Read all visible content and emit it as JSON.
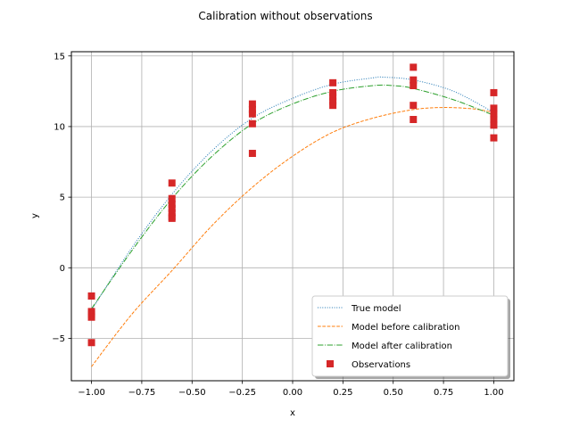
{
  "chart_data": {
    "type": "line",
    "title": "Calibration without observations",
    "xlabel": "x",
    "ylabel": "y",
    "xlim": [
      -1.1,
      1.1
    ],
    "ylim": [
      -8,
      15.3
    ],
    "xticks": [
      -1.0,
      -0.75,
      -0.5,
      -0.25,
      0.0,
      0.25,
      0.5,
      0.75,
      1.0
    ],
    "xtick_labels": [
      "−1.00",
      "−0.75",
      "−0.50",
      "−0.25",
      "0.00",
      "0.25",
      "0.50",
      "0.75",
      "1.00"
    ],
    "yticks": [
      -5,
      0,
      5,
      10,
      15
    ],
    "ytick_labels": [
      "−5",
      "0",
      "5",
      "10",
      "15"
    ],
    "grid": true,
    "legend_position": "lower-right",
    "series": [
      {
        "name": "True model",
        "style": "dotted",
        "color": "#1f77b4",
        "x": [
          -1.0,
          -0.8,
          -0.6,
          -0.4,
          -0.2,
          0.0,
          0.2,
          0.4,
          0.45,
          0.6,
          0.8,
          1.0
        ],
        "y": [
          -3.0,
          1.4,
          5.2,
          8.3,
          10.6,
          12.0,
          13.0,
          13.45,
          13.5,
          13.3,
          12.5,
          11.0
        ]
      },
      {
        "name": "Model before calibration",
        "style": "dashed",
        "color": "#ff7f0e",
        "x": [
          -1.0,
          -0.8,
          -0.6,
          -0.4,
          -0.2,
          0.0,
          0.2,
          0.4,
          0.6,
          0.75,
          0.9,
          1.0
        ],
        "y": [
          -7.0,
          -3.3,
          -0.2,
          3.0,
          5.7,
          7.9,
          9.6,
          10.6,
          11.2,
          11.35,
          11.25,
          11.0
        ]
      },
      {
        "name": "Model after calibration",
        "style": "dashdot",
        "color": "#2ca02c",
        "x": [
          -1.0,
          -0.8,
          -0.6,
          -0.4,
          -0.2,
          0.0,
          0.2,
          0.4,
          0.5,
          0.6,
          0.8,
          1.0
        ],
        "y": [
          -2.9,
          1.2,
          4.9,
          7.9,
          10.2,
          11.6,
          12.5,
          12.9,
          12.9,
          12.7,
          11.9,
          10.8
        ]
      },
      {
        "name": "Observations",
        "style": "markers",
        "color": "#d62728",
        "x": [
          -1.0,
          -1.0,
          -1.0,
          -1.0,
          -1.0,
          -0.6,
          -0.6,
          -0.6,
          -0.6,
          -0.6,
          -0.6,
          -0.6,
          -0.2,
          -0.2,
          -0.2,
          -0.2,
          -0.2,
          0.2,
          0.2,
          0.2,
          0.2,
          0.2,
          0.6,
          0.6,
          0.6,
          0.6,
          0.6,
          1.0,
          1.0,
          1.0,
          1.0,
          1.0,
          1.0
        ],
        "y": [
          -2.0,
          -3.1,
          -3.3,
          -3.5,
          -5.3,
          6.0,
          4.9,
          4.5,
          4.2,
          3.9,
          3.6,
          3.5,
          11.6,
          11.2,
          10.9,
          10.2,
          8.1,
          13.1,
          12.4,
          12.1,
          11.8,
          11.5,
          14.2,
          13.3,
          12.9,
          11.5,
          10.5,
          12.4,
          11.3,
          10.9,
          10.5,
          10.1,
          9.2
        ]
      }
    ]
  }
}
